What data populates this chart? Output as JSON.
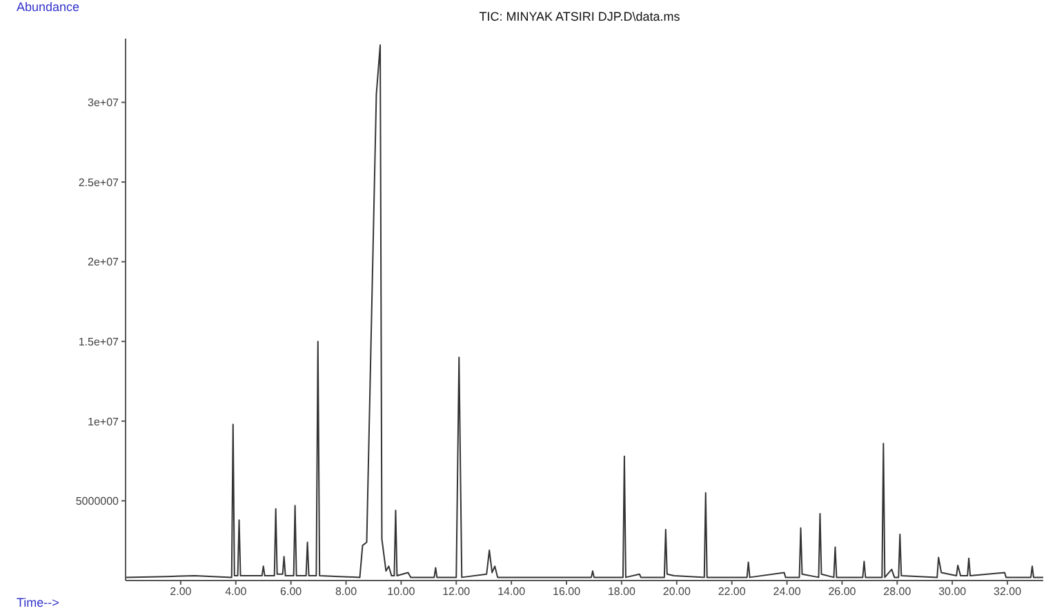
{
  "chart_data": {
    "type": "line",
    "title": "TIC: MINYAK ATSIRI DJP.D\\data.ms",
    "xlabel": "Time-->",
    "ylabel": "Abundance",
    "color": "#333333",
    "grid": false,
    "legend": false,
    "marker": "none",
    "line_style": "solid",
    "xlim": [
      0,
      33.3
    ],
    "xticks": [
      {
        "value": 2,
        "label": "2.00"
      },
      {
        "value": 4,
        "label": "4.00"
      },
      {
        "value": 6,
        "label": "6.00"
      },
      {
        "value": 8,
        "label": "8.00"
      },
      {
        "value": 10,
        "label": "10.00"
      },
      {
        "value": 12,
        "label": "12.00"
      },
      {
        "value": 14,
        "label": "14.00"
      },
      {
        "value": 16,
        "label": "16.00"
      },
      {
        "value": 18,
        "label": "18.00"
      },
      {
        "value": 20,
        "label": "20.00"
      },
      {
        "value": 22,
        "label": "22.00"
      },
      {
        "value": 24,
        "label": "24.00"
      },
      {
        "value": 26,
        "label": "26.00"
      },
      {
        "value": 28,
        "label": "28.00"
      },
      {
        "value": 30,
        "label": "30.00"
      },
      {
        "value": 32,
        "label": "32.00"
      }
    ],
    "ylim": [
      0,
      34000000
    ],
    "yticks": [
      {
        "value": 5000000,
        "label": "5000000"
      },
      {
        "value": 10000000,
        "label": "1e+07"
      },
      {
        "value": 15000000,
        "label": "1.5e+07"
      },
      {
        "value": 20000000,
        "label": "2e+07"
      },
      {
        "value": 25000000,
        "label": "2.5e+07"
      },
      {
        "value": 30000000,
        "label": "3e+07"
      }
    ],
    "x": [
      0,
      1.5,
      2.5,
      3.85,
      3.9,
      3.95,
      4.07,
      4.12,
      4.17,
      4.95,
      5.0,
      5.05,
      5.4,
      5.45,
      5.5,
      5.7,
      5.75,
      5.8,
      6.1,
      6.15,
      6.2,
      6.55,
      6.6,
      6.65,
      6.92,
      6.98,
      7.04,
      8.5,
      8.6,
      8.75,
      9.1,
      9.24,
      9.3,
      9.45,
      9.55,
      9.65,
      9.75,
      9.8,
      9.85,
      10.25,
      10.35,
      11.2,
      11.25,
      11.3,
      12.0,
      12.1,
      12.2,
      13.1,
      13.2,
      13.3,
      13.4,
      13.5,
      16.9,
      16.95,
      17.0,
      18.05,
      18.1,
      18.15,
      18.65,
      18.7,
      19.55,
      19.6,
      19.65,
      19.9,
      21.0,
      21.05,
      21.1,
      22.55,
      22.6,
      22.65,
      23.9,
      23.95,
      24.45,
      24.5,
      24.55,
      25.15,
      25.2,
      25.25,
      25.7,
      25.75,
      25.8,
      26.75,
      26.8,
      26.85,
      27.45,
      27.5,
      27.55,
      27.8,
      27.9,
      28.05,
      28.1,
      28.15,
      29.45,
      29.5,
      29.6,
      30.15,
      30.2,
      30.3,
      30.55,
      30.6,
      30.65,
      31.9,
      31.95,
      32.85,
      32.9,
      32.95,
      33.3
    ],
    "values": [
      200000,
      250000,
      300000,
      200000,
      9800000,
      300000,
      300000,
      3800000,
      300000,
      300000,
      900000,
      300000,
      300000,
      4500000,
      400000,
      400000,
      1500000,
      300000,
      300000,
      4700000,
      300000,
      300000,
      2400000,
      300000,
      300000,
      15000000,
      300000,
      200000,
      2200000,
      2400000,
      30500000,
      33600000,
      2600000,
      600000,
      900000,
      300000,
      300000,
      4400000,
      300000,
      500000,
      200000,
      200000,
      800000,
      200000,
      200000,
      14000000,
      200000,
      400000,
      1900000,
      500000,
      900000,
      200000,
      200000,
      600000,
      200000,
      200000,
      7800000,
      200000,
      400000,
      200000,
      200000,
      3200000,
      400000,
      300000,
      200000,
      5500000,
      200000,
      200000,
      1150000,
      200000,
      500000,
      200000,
      200000,
      3300000,
      400000,
      200000,
      4200000,
      400000,
      200000,
      2100000,
      200000,
      200000,
      1200000,
      200000,
      200000,
      8600000,
      200000,
      700000,
      200000,
      200000,
      2900000,
      300000,
      200000,
      1450000,
      500000,
      300000,
      950000,
      300000,
      300000,
      1400000,
      300000,
      500000,
      200000,
      200000,
      900000,
      200000,
      200000
    ]
  }
}
